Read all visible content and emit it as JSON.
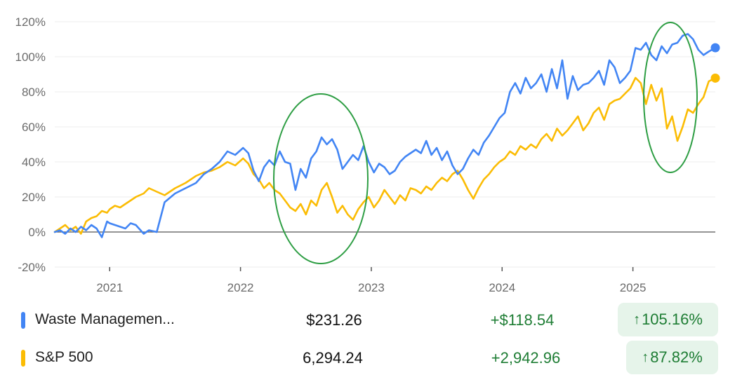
{
  "chart_data": {
    "type": "line",
    "x_ticks": [
      "2021",
      "2022",
      "2023",
      "2024",
      "2025"
    ],
    "y_ticks": [
      "120%",
      "100%",
      "80%",
      "60%",
      "40%",
      "20%",
      "0%",
      "-20%"
    ],
    "ylim": [
      -20,
      120
    ],
    "xlim": [
      2020.58,
      2025.63
    ],
    "grid": true,
    "annotations": [
      "green-ellipse-mid-2022",
      "green-ellipse-2025"
    ],
    "series": [
      {
        "name": "Waste Managemen...",
        "color": "#4285f4",
        "x": [
          2020.58,
          2020.62,
          2020.66,
          2020.7,
          2020.74,
          2020.78,
          2020.82,
          2020.86,
          2020.9,
          2020.94,
          2020.98,
          2021.0,
          2021.04,
          2021.08,
          2021.12,
          2021.16,
          2021.2,
          2021.26,
          2021.3,
          2021.36,
          2021.42,
          2021.5,
          2021.58,
          2021.66,
          2021.72,
          2021.78,
          2021.84,
          2021.9,
          2021.96,
          2022.02,
          2022.06,
          2022.1,
          2022.14,
          2022.18,
          2022.22,
          2022.26,
          2022.3,
          2022.34,
          2022.38,
          2022.42,
          2022.46,
          2022.5,
          2022.54,
          2022.58,
          2022.62,
          2022.66,
          2022.7,
          2022.74,
          2022.78,
          2022.82,
          2022.86,
          2022.9,
          2022.94,
          2022.98,
          2023.02,
          2023.06,
          2023.1,
          2023.14,
          2023.18,
          2023.22,
          2023.26,
          2023.3,
          2023.34,
          2023.38,
          2023.42,
          2023.46,
          2023.5,
          2023.54,
          2023.58,
          2023.62,
          2023.66,
          2023.7,
          2023.74,
          2023.78,
          2023.82,
          2023.86,
          2023.9,
          2023.94,
          2023.98,
          2024.02,
          2024.06,
          2024.1,
          2024.14,
          2024.18,
          2024.22,
          2024.26,
          2024.3,
          2024.34,
          2024.38,
          2024.42,
          2024.46,
          2024.5,
          2024.54,
          2024.58,
          2024.62,
          2024.66,
          2024.7,
          2024.74,
          2024.78,
          2024.82,
          2024.86,
          2024.9,
          2024.94,
          2024.98,
          2025.02,
          2025.06,
          2025.1,
          2025.14,
          2025.18,
          2025.22,
          2025.26,
          2025.3,
          2025.34,
          2025.38,
          2025.42,
          2025.46,
          2025.5,
          2025.54,
          2025.58,
          2025.63
        ],
        "y": [
          0,
          1,
          -1,
          2,
          0,
          3,
          1,
          4,
          2,
          -3,
          6,
          5,
          4,
          3,
          2,
          5,
          4,
          -1,
          1,
          0,
          17,
          22,
          25,
          28,
          33,
          36,
          40,
          46,
          44,
          48,
          45,
          35,
          29,
          37,
          41,
          38,
          46,
          40,
          39,
          24,
          36,
          31,
          42,
          46,
          54,
          50,
          53,
          47,
          36,
          40,
          44,
          41,
          49,
          40,
          34,
          39,
          37,
          33,
          35,
          40,
          43,
          45,
          47,
          45,
          52,
          44,
          48,
          41,
          46,
          38,
          33,
          36,
          42,
          47,
          44,
          51,
          55,
          60,
          65,
          68,
          80,
          85,
          79,
          88,
          82,
          85,
          90,
          80,
          93,
          82,
          98,
          76,
          89,
          81,
          84,
          85,
          88,
          92,
          84,
          98,
          94,
          85,
          88,
          92,
          105,
          104,
          108,
          101,
          98,
          106,
          102,
          107,
          108,
          112,
          113,
          110,
          104,
          101,
          103,
          105.16
        ],
        "end_dot": true
      },
      {
        "name": "S&P 500",
        "color": "#fbbc04",
        "x": [
          2020.58,
          2020.62,
          2020.66,
          2020.7,
          2020.74,
          2020.78,
          2020.82,
          2020.86,
          2020.9,
          2020.94,
          2020.98,
          2021.0,
          2021.04,
          2021.08,
          2021.12,
          2021.16,
          2021.2,
          2021.26,
          2021.3,
          2021.36,
          2021.42,
          2021.5,
          2021.58,
          2021.66,
          2021.72,
          2021.78,
          2021.84,
          2021.9,
          2021.96,
          2022.02,
          2022.06,
          2022.1,
          2022.14,
          2022.18,
          2022.22,
          2022.26,
          2022.3,
          2022.34,
          2022.38,
          2022.42,
          2022.46,
          2022.5,
          2022.54,
          2022.58,
          2022.62,
          2022.66,
          2022.7,
          2022.74,
          2022.78,
          2022.82,
          2022.86,
          2022.9,
          2022.94,
          2022.98,
          2023.02,
          2023.06,
          2023.1,
          2023.14,
          2023.18,
          2023.22,
          2023.26,
          2023.3,
          2023.34,
          2023.38,
          2023.42,
          2023.46,
          2023.5,
          2023.54,
          2023.58,
          2023.62,
          2023.66,
          2023.7,
          2023.74,
          2023.78,
          2023.82,
          2023.86,
          2023.9,
          2023.94,
          2023.98,
          2024.02,
          2024.06,
          2024.1,
          2024.14,
          2024.18,
          2024.22,
          2024.26,
          2024.3,
          2024.34,
          2024.38,
          2024.42,
          2024.46,
          2024.5,
          2024.54,
          2024.58,
          2024.62,
          2024.66,
          2024.7,
          2024.74,
          2024.78,
          2024.82,
          2024.86,
          2024.9,
          2024.94,
          2024.98,
          2025.02,
          2025.06,
          2025.1,
          2025.14,
          2025.18,
          2025.22,
          2025.26,
          2025.3,
          2025.34,
          2025.38,
          2025.42,
          2025.46,
          2025.5,
          2025.54,
          2025.58,
          2025.63
        ],
        "y": [
          0,
          2,
          4,
          1,
          3,
          -1,
          6,
          8,
          9,
          12,
          11,
          13,
          15,
          14,
          16,
          18,
          20,
          22,
          25,
          23,
          21,
          25,
          28,
          32,
          34,
          35,
          37,
          40,
          38,
          42,
          39,
          33,
          30,
          25,
          28,
          24,
          22,
          18,
          14,
          12,
          16,
          10,
          18,
          15,
          24,
          28,
          20,
          11,
          15,
          10,
          7,
          13,
          17,
          20,
          14,
          18,
          24,
          20,
          16,
          21,
          18,
          25,
          24,
          22,
          26,
          24,
          28,
          31,
          29,
          33,
          35,
          30,
          24,
          19,
          25,
          30,
          33,
          37,
          40,
          42,
          46,
          44,
          49,
          47,
          50,
          48,
          53,
          56,
          52,
          59,
          55,
          58,
          62,
          66,
          58,
          62,
          68,
          71,
          64,
          73,
          75,
          76,
          79,
          82,
          88,
          85,
          73,
          84,
          75,
          82,
          59,
          66,
          52,
          60,
          70,
          68,
          73,
          77,
          86,
          87.82
        ],
        "end_dot": true
      }
    ]
  },
  "legend": [
    {
      "name": "Waste Managemen...",
      "price": "$231.26",
      "change": "+$118.54",
      "percent": "105.16%",
      "color": "#4285f4"
    },
    {
      "name": "S&P 500",
      "price": "6,294.24",
      "change": "+2,942.96",
      "percent": "87.82%",
      "color": "#fbbc04"
    }
  ],
  "colors": {
    "up": "#1e7d34",
    "up_bg": "#e6f4ea",
    "annotation": "#2e9e44",
    "grid": "#eeeeee",
    "zero_line": "#555555"
  }
}
